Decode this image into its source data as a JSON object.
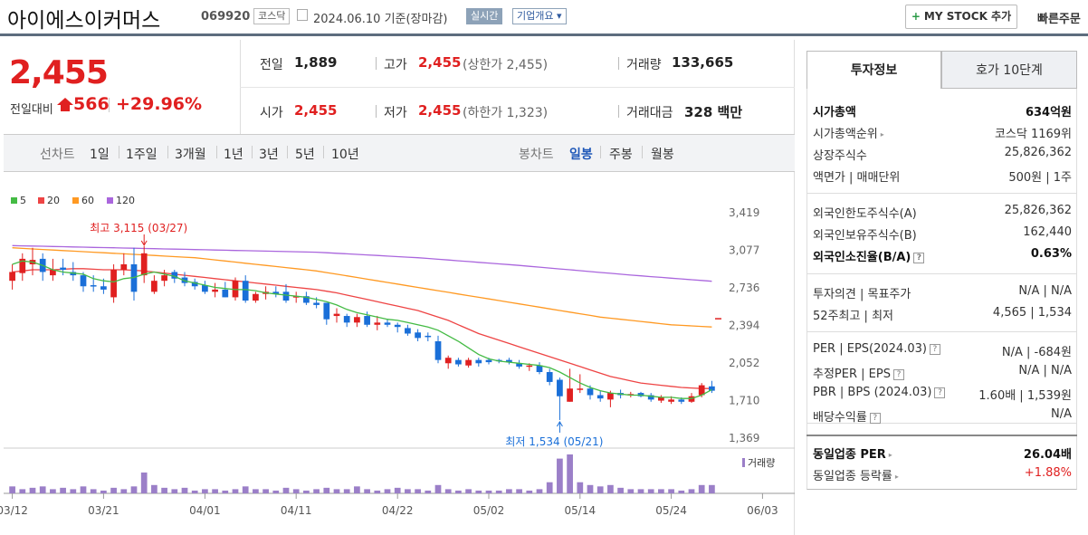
{
  "header": {
    "company": "아이에스이커머스",
    "code": "069920",
    "market": "코스닥",
    "date_text": "2024.06.10 기준(장마감)",
    "realtime_label": "실시간",
    "corp_label": "기업개요 ▾",
    "mystock_label": "MY STOCK 추가",
    "quick_order_label": "빠른주문"
  },
  "price": {
    "current": "2,455",
    "change_label": "전일대비",
    "change": "566",
    "change_pct": "+29.96%",
    "prev_label": "전일",
    "prev": "1,889",
    "high_label": "고가",
    "high": "2,455",
    "high_note": "(상한가 2,455)",
    "volume_label": "거래량",
    "volume": "133,665",
    "open_label": "시가",
    "open": "2,455",
    "low_label": "저가",
    "low": "2,455",
    "low_note": "(하한가 1,323)",
    "amount_label": "거래대금",
    "amount": "328 백만"
  },
  "chart_tabs": {
    "line_label": "선차트",
    "periods": [
      "1일",
      "1주일",
      "3개월",
      "1년",
      "3년",
      "5년",
      "10년"
    ],
    "candle_label": "봉차트",
    "candles": [
      "일봉",
      "주봉",
      "월봉"
    ],
    "active_candle": "일봉"
  },
  "colors": {
    "up": "#e02020",
    "down": "#1a6fd8",
    "ma5": "#44bb44",
    "ma20": "#ee4444",
    "ma60": "#ff9922",
    "ma120": "#aa66dd",
    "volume": "#9b7fc8"
  },
  "chart_data": {
    "type": "candlestick",
    "legend": [
      "5",
      "20",
      "60",
      "120"
    ],
    "y_ticks": [
      "3,419",
      "3,077",
      "2,736",
      "2,394",
      "2,052",
      "1,710",
      "1,369"
    ],
    "ylim": [
      1369,
      3419
    ],
    "x_ticks": [
      "03/12",
      "03/21",
      "04/01",
      "04/11",
      "04/22",
      "05/02",
      "05/14",
      "05/24",
      "06/03"
    ],
    "high_annotation": "최고 3,115 (03/27)",
    "low_annotation": "최저 1,534 (05/21)",
    "volume_label": "거래량",
    "candles": [
      {
        "o": 2800,
        "h": 2950,
        "l": 2720,
        "c": 2880
      },
      {
        "o": 2870,
        "h": 3050,
        "l": 2800,
        "c": 3000
      },
      {
        "o": 2950,
        "h": 3100,
        "l": 2850,
        "c": 2990
      },
      {
        "o": 3000,
        "h": 3050,
        "l": 2800,
        "c": 2880
      },
      {
        "o": 2850,
        "h": 3000,
        "l": 2800,
        "c": 2900
      },
      {
        "o": 2920,
        "h": 3000,
        "l": 2850,
        "c": 2900
      },
      {
        "o": 2880,
        "h": 2970,
        "l": 2800,
        "c": 2850
      },
      {
        "o": 2850,
        "h": 2880,
        "l": 2700,
        "c": 2750
      },
      {
        "o": 2760,
        "h": 2850,
        "l": 2700,
        "c": 2750
      },
      {
        "o": 2750,
        "h": 2820,
        "l": 2680,
        "c": 2720
      },
      {
        "o": 2650,
        "h": 2950,
        "l": 2600,
        "c": 2900
      },
      {
        "o": 2900,
        "h": 3050,
        "l": 2850,
        "c": 2950
      },
      {
        "o": 2950,
        "h": 3100,
        "l": 2620,
        "c": 2700
      },
      {
        "o": 2850,
        "h": 3115,
        "l": 2780,
        "c": 3050
      },
      {
        "o": 2700,
        "h": 2850,
        "l": 2680,
        "c": 2800
      },
      {
        "o": 2800,
        "h": 2900,
        "l": 2750,
        "c": 2850
      },
      {
        "o": 2880,
        "h": 2900,
        "l": 2780,
        "c": 2820
      },
      {
        "o": 2830,
        "h": 2880,
        "l": 2750,
        "c": 2780
      },
      {
        "o": 2790,
        "h": 2820,
        "l": 2720,
        "c": 2750
      },
      {
        "o": 2760,
        "h": 2800,
        "l": 2680,
        "c": 2700
      },
      {
        "o": 2700,
        "h": 2780,
        "l": 2650,
        "c": 2720
      },
      {
        "o": 2720,
        "h": 2790,
        "l": 2650,
        "c": 2650
      },
      {
        "o": 2650,
        "h": 2830,
        "l": 2620,
        "c": 2800
      },
      {
        "o": 2800,
        "h": 2850,
        "l": 2600,
        "c": 2620
      },
      {
        "o": 2620,
        "h": 2700,
        "l": 2600,
        "c": 2680
      },
      {
        "o": 2680,
        "h": 2750,
        "l": 2630,
        "c": 2700
      },
      {
        "o": 2700,
        "h": 2750,
        "l": 2650,
        "c": 2680
      },
      {
        "o": 2700,
        "h": 2770,
        "l": 2600,
        "c": 2620
      },
      {
        "o": 2650,
        "h": 2700,
        "l": 2600,
        "c": 2660
      },
      {
        "o": 2660,
        "h": 2700,
        "l": 2580,
        "c": 2600
      },
      {
        "o": 2600,
        "h": 2650,
        "l": 2550,
        "c": 2580
      },
      {
        "o": 2600,
        "h": 2600,
        "l": 2400,
        "c": 2450
      },
      {
        "o": 2480,
        "h": 2550,
        "l": 2420,
        "c": 2500
      },
      {
        "o": 2480,
        "h": 2500,
        "l": 2380,
        "c": 2420
      },
      {
        "o": 2420,
        "h": 2500,
        "l": 2380,
        "c": 2470
      },
      {
        "o": 2480,
        "h": 2520,
        "l": 2380,
        "c": 2400
      },
      {
        "o": 2400,
        "h": 2480,
        "l": 2350,
        "c": 2420
      },
      {
        "o": 2420,
        "h": 2450,
        "l": 2380,
        "c": 2400
      },
      {
        "o": 2400,
        "h": 2420,
        "l": 2330,
        "c": 2380
      },
      {
        "o": 2370,
        "h": 2400,
        "l": 2300,
        "c": 2320
      },
      {
        "o": 2330,
        "h": 2360,
        "l": 2250,
        "c": 2280
      },
      {
        "o": 2300,
        "h": 2330,
        "l": 2250,
        "c": 2290
      },
      {
        "o": 2250,
        "h": 2300,
        "l": 2050,
        "c": 2080
      },
      {
        "o": 2050,
        "h": 2120,
        "l": 2000,
        "c": 2100
      },
      {
        "o": 2080,
        "h": 2100,
        "l": 2020,
        "c": 2040
      },
      {
        "o": 2030,
        "h": 2100,
        "l": 2010,
        "c": 2080
      },
      {
        "o": 2080,
        "h": 2100,
        "l": 2020,
        "c": 2050
      },
      {
        "o": 2080,
        "h": 2100,
        "l": 2040,
        "c": 2060
      },
      {
        "o": 2080,
        "h": 2090,
        "l": 2050,
        "c": 2070
      },
      {
        "o": 2080,
        "h": 2100,
        "l": 2040,
        "c": 2060
      },
      {
        "o": 2050,
        "h": 2080,
        "l": 2000,
        "c": 2020
      },
      {
        "o": 2020,
        "h": 2050,
        "l": 1980,
        "c": 2030
      },
      {
        "o": 2030,
        "h": 2060,
        "l": 1950,
        "c": 1970
      },
      {
        "o": 1970,
        "h": 2000,
        "l": 1850,
        "c": 1880
      },
      {
        "o": 1900,
        "h": 1920,
        "l": 1534,
        "c": 1750
      },
      {
        "o": 1700,
        "h": 2000,
        "l": 1700,
        "c": 1820
      },
      {
        "o": 1820,
        "h": 1950,
        "l": 1780,
        "c": 1820
      },
      {
        "o": 1820,
        "h": 1850,
        "l": 1720,
        "c": 1760
      },
      {
        "o": 1760,
        "h": 1800,
        "l": 1700,
        "c": 1730
      },
      {
        "o": 1720,
        "h": 1800,
        "l": 1650,
        "c": 1780
      },
      {
        "o": 1780,
        "h": 1810,
        "l": 1730,
        "c": 1760
      },
      {
        "o": 1760,
        "h": 1790,
        "l": 1740,
        "c": 1770
      },
      {
        "o": 1780,
        "h": 1790,
        "l": 1740,
        "c": 1750
      },
      {
        "o": 1760,
        "h": 1780,
        "l": 1700,
        "c": 1720
      },
      {
        "o": 1710,
        "h": 1760,
        "l": 1690,
        "c": 1740
      },
      {
        "o": 1700,
        "h": 1750,
        "l": 1680,
        "c": 1720
      },
      {
        "o": 1720,
        "h": 1740,
        "l": 1680,
        "c": 1700
      },
      {
        "o": 1700,
        "h": 1780,
        "l": 1690,
        "c": 1750
      },
      {
        "o": 1760,
        "h": 1870,
        "l": 1740,
        "c": 1850
      },
      {
        "o": 1840,
        "h": 1890,
        "l": 1780,
        "c": 1800
      }
    ],
    "volumes": [
      5,
      3,
      4,
      5,
      3,
      4,
      3,
      5,
      3,
      2,
      4,
      3,
      5,
      15,
      6,
      4,
      3,
      4,
      2,
      3,
      3,
      2,
      3,
      5,
      3,
      3,
      2,
      4,
      3,
      2,
      3,
      4,
      3,
      3,
      5,
      3,
      2,
      3,
      4,
      3,
      3,
      2,
      6,
      3,
      2,
      3,
      2,
      2,
      2,
      3,
      3,
      2,
      3,
      8,
      25,
      28,
      8,
      6,
      5,
      6,
      4,
      3,
      3,
      3,
      3,
      3,
      2,
      3,
      6,
      6
    ],
    "ma5": [
      2950,
      2980,
      2970,
      2940,
      2900,
      2880,
      2870,
      2860,
      2820,
      2800,
      2790,
      2820,
      2830,
      2860,
      2880,
      2860,
      2840,
      2800,
      2780,
      2760,
      2740,
      2730,
      2720,
      2720,
      2710,
      2690,
      2680,
      2670,
      2660,
      2650,
      2630,
      2610,
      2580,
      2540,
      2510,
      2490,
      2470,
      2450,
      2440,
      2420,
      2400,
      2380,
      2350,
      2300,
      2250,
      2190,
      2130,
      2090,
      2070,
      2060,
      2050,
      2040,
      2030,
      2010,
      1970,
      1920,
      1870,
      1830,
      1800,
      1780,
      1770,
      1760,
      1760,
      1750,
      1740,
      1740,
      1730,
      1730,
      1760,
      1810
    ],
    "ma20": [
      2880,
      2890,
      2900,
      2900,
      2900,
      2905,
      2910,
      2910,
      2905,
      2900,
      2900,
      2900,
      2895,
      2890,
      2880,
      2870,
      2860,
      2850,
      2840,
      2830,
      2820,
      2810,
      2800,
      2790,
      2780,
      2770,
      2760,
      2750,
      2740,
      2730,
      2720,
      2705,
      2690,
      2670,
      2650,
      2630,
      2610,
      2590,
      2570,
      2550,
      2530,
      2500,
      2470,
      2440,
      2400,
      2360,
      2320,
      2290,
      2260,
      2230,
      2200,
      2170,
      2140,
      2110,
      2080,
      2050,
      2020,
      1990,
      1960,
      1930,
      1910,
      1890,
      1870,
      1860,
      1850,
      1840,
      1830,
      1825,
      1820,
      1820
    ],
    "ma60": [
      3100,
      3095,
      3090,
      3085,
      3080,
      3075,
      3070,
      3065,
      3060,
      3055,
      3050,
      3045,
      3040,
      3035,
      3030,
      3025,
      3020,
      3015,
      3010,
      3000,
      2990,
      2980,
      2970,
      2960,
      2950,
      2940,
      2930,
      2920,
      2910,
      2900,
      2890,
      2875,
      2860,
      2845,
      2830,
      2815,
      2800,
      2785,
      2770,
      2755,
      2740,
      2725,
      2710,
      2695,
      2680,
      2665,
      2650,
      2635,
      2620,
      2605,
      2590,
      2575,
      2560,
      2545,
      2530,
      2515,
      2500,
      2485,
      2470,
      2460,
      2450,
      2440,
      2430,
      2420,
      2410,
      2400,
      2395,
      2390,
      2385,
      2380
    ],
    "ma120": [
      3120,
      3118,
      3116,
      3114,
      3112,
      3110,
      3108,
      3106,
      3104,
      3102,
      3100,
      3098,
      3096,
      3094,
      3092,
      3090,
      3088,
      3086,
      3084,
      3082,
      3080,
      3078,
      3076,
      3074,
      3072,
      3070,
      3068,
      3066,
      3064,
      3062,
      3060,
      3055,
      3050,
      3045,
      3040,
      3035,
      3030,
      3025,
      3020,
      3015,
      3010,
      3003,
      2996,
      2989,
      2982,
      2975,
      2968,
      2961,
      2954,
      2947,
      2940,
      2932,
      2924,
      2916,
      2908,
      2900,
      2892,
      2884,
      2876,
      2868,
      2860,
      2852,
      2845,
      2838,
      2831,
      2824,
      2817,
      2810,
      2803,
      2796
    ]
  },
  "invest": {
    "tab1": "투자정보",
    "tab2": "호가 10단계",
    "rows1": [
      {
        "l": "시가총액",
        "r": "634억원",
        "bold": true
      },
      {
        "l": "시가총액순위",
        "r": "코스닥 1169위",
        "tri": true
      },
      {
        "l": "상장주식수",
        "r": "25,826,362"
      },
      {
        "l": "액면가 | 매매단위",
        "r": "500원 | 1주"
      }
    ],
    "rows2": [
      {
        "l": "외국인한도주식수(A)",
        "r": "25,826,362"
      },
      {
        "l": "외국인보유주식수(B)",
        "r": "162,440"
      },
      {
        "l": "외국인소진율(B/A)",
        "r": "0.63%",
        "bold": true,
        "q": true
      }
    ],
    "rows3": [
      {
        "l": "투자의견 | 목표주가",
        "r": "N/A | N/A"
      },
      {
        "l": "52주최고 | 최저",
        "r": "4,565 | 1,534"
      }
    ],
    "rows4": [
      {
        "l": "PER | EPS(2024.03)",
        "r": "N/A | -684원",
        "q": true
      },
      {
        "l": "추정PER | EPS",
        "r": "N/A | N/A",
        "q": true
      },
      {
        "l": "PBR | BPS (2024.03)",
        "r": "1.60배 | 1,539원",
        "q": true
      },
      {
        "l": "배당수익률",
        "r": "N/A",
        "q": true
      }
    ],
    "rows5": [
      {
        "l": "동일업종 PER",
        "r": "26.04배",
        "tri": true,
        "bold": true
      },
      {
        "l": "동일업종 등락률",
        "r": "+1.88%",
        "tri": true,
        "red": true
      }
    ]
  }
}
